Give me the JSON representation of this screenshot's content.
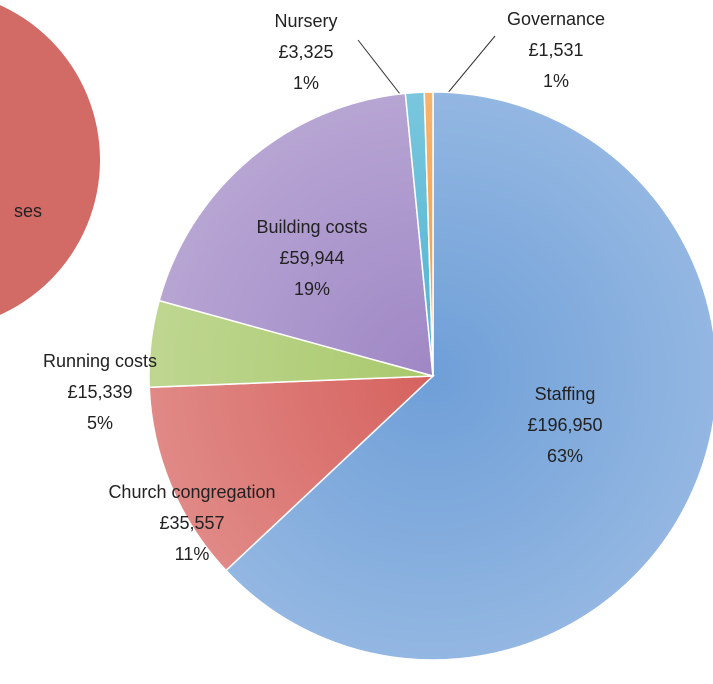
{
  "chart_data": {
    "type": "pie",
    "categories": [
      "Staffing",
      "Church congregation",
      "Running costs",
      "Building costs",
      "Nursery",
      "Governance"
    ],
    "values": [
      196950,
      35557,
      15339,
      59944,
      3325,
      1531
    ],
    "value_labels": [
      "£196,950",
      "£35,557",
      "£15,339",
      "£59,944",
      "£3,325",
      "£1,531"
    ],
    "percentages": [
      63,
      11,
      5,
      19,
      1,
      1
    ],
    "percentage_labels": [
      "63%",
      "11%",
      "5%",
      "19%",
      "1%",
      "1%"
    ],
    "colors": [
      "#6f9fd8",
      "#d6625e",
      "#a9c96c",
      "#9f87c5",
      "#4db4d2",
      "#f59a3c"
    ],
    "annotations": [
      "ses"
    ]
  }
}
